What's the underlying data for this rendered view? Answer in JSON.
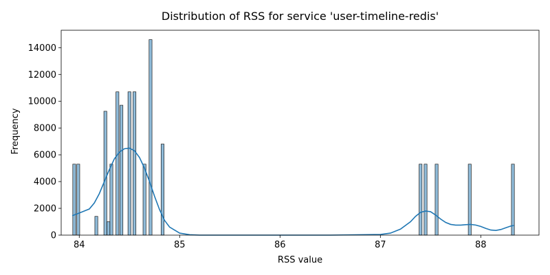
{
  "chart_data": {
    "type": "bar",
    "title": "Distribution of RSS for service 'user-timeline-redis'",
    "xlabel": "RSS value",
    "ylabel": "Frequency",
    "xlim": [
      83.82,
      88.58
    ],
    "ylim": [
      0,
      15300
    ],
    "xticks": [
      84,
      85,
      86,
      87,
      88
    ],
    "yticks": [
      0,
      2000,
      4000,
      6000,
      8000,
      10000,
      12000,
      14000
    ],
    "grid": false,
    "bar_color": "#1f77b4",
    "bar_fill_opacity": 0.5,
    "kde_color": "#1f77b4",
    "bin_width": 0.0294,
    "histogram": [
      {
        "x": 83.95,
        "count": 5300
      },
      {
        "x": 83.99,
        "count": 5300
      },
      {
        "x": 84.17,
        "count": 1400
      },
      {
        "x": 84.26,
        "count": 9250
      },
      {
        "x": 84.29,
        "count": 1000
      },
      {
        "x": 84.32,
        "count": 5300
      },
      {
        "x": 84.38,
        "count": 10700
      },
      {
        "x": 84.42,
        "count": 9700
      },
      {
        "x": 84.5,
        "count": 10700
      },
      {
        "x": 84.55,
        "count": 10700
      },
      {
        "x": 84.65,
        "count": 5300
      },
      {
        "x": 84.71,
        "count": 14600
      },
      {
        "x": 84.83,
        "count": 6800
      },
      {
        "x": 87.4,
        "count": 5300
      },
      {
        "x": 87.45,
        "count": 5300
      },
      {
        "x": 87.56,
        "count": 5300
      },
      {
        "x": 87.89,
        "count": 5300
      },
      {
        "x": 88.32,
        "count": 5300
      }
    ],
    "kde": {
      "x": [
        83.93,
        84.0,
        84.1,
        84.15,
        84.2,
        84.25,
        84.3,
        84.35,
        84.4,
        84.45,
        84.5,
        84.55,
        84.6,
        84.65,
        84.7,
        84.75,
        84.8,
        84.85,
        84.9,
        85.0,
        85.1,
        85.2,
        85.5,
        86.0,
        86.5,
        87.0,
        87.1,
        87.2,
        87.3,
        87.35,
        87.4,
        87.45,
        87.5,
        87.55,
        87.6,
        87.65,
        87.7,
        87.75,
        87.8,
        87.85,
        87.9,
        87.95,
        88.0,
        88.05,
        88.1,
        88.15,
        88.2,
        88.25,
        88.3,
        88.33
      ],
      "y": [
        1450,
        1650,
        1950,
        2400,
        3100,
        4000,
        4900,
        5700,
        6200,
        6450,
        6500,
        6300,
        5800,
        5000,
        4000,
        2900,
        1900,
        1100,
        600,
        150,
        30,
        0,
        0,
        0,
        0,
        50,
        150,
        450,
        1000,
        1400,
        1700,
        1800,
        1750,
        1500,
        1200,
        950,
        800,
        750,
        750,
        780,
        800,
        750,
        650,
        500,
        380,
        350,
        420,
        550,
        680,
        720
      ]
    }
  }
}
